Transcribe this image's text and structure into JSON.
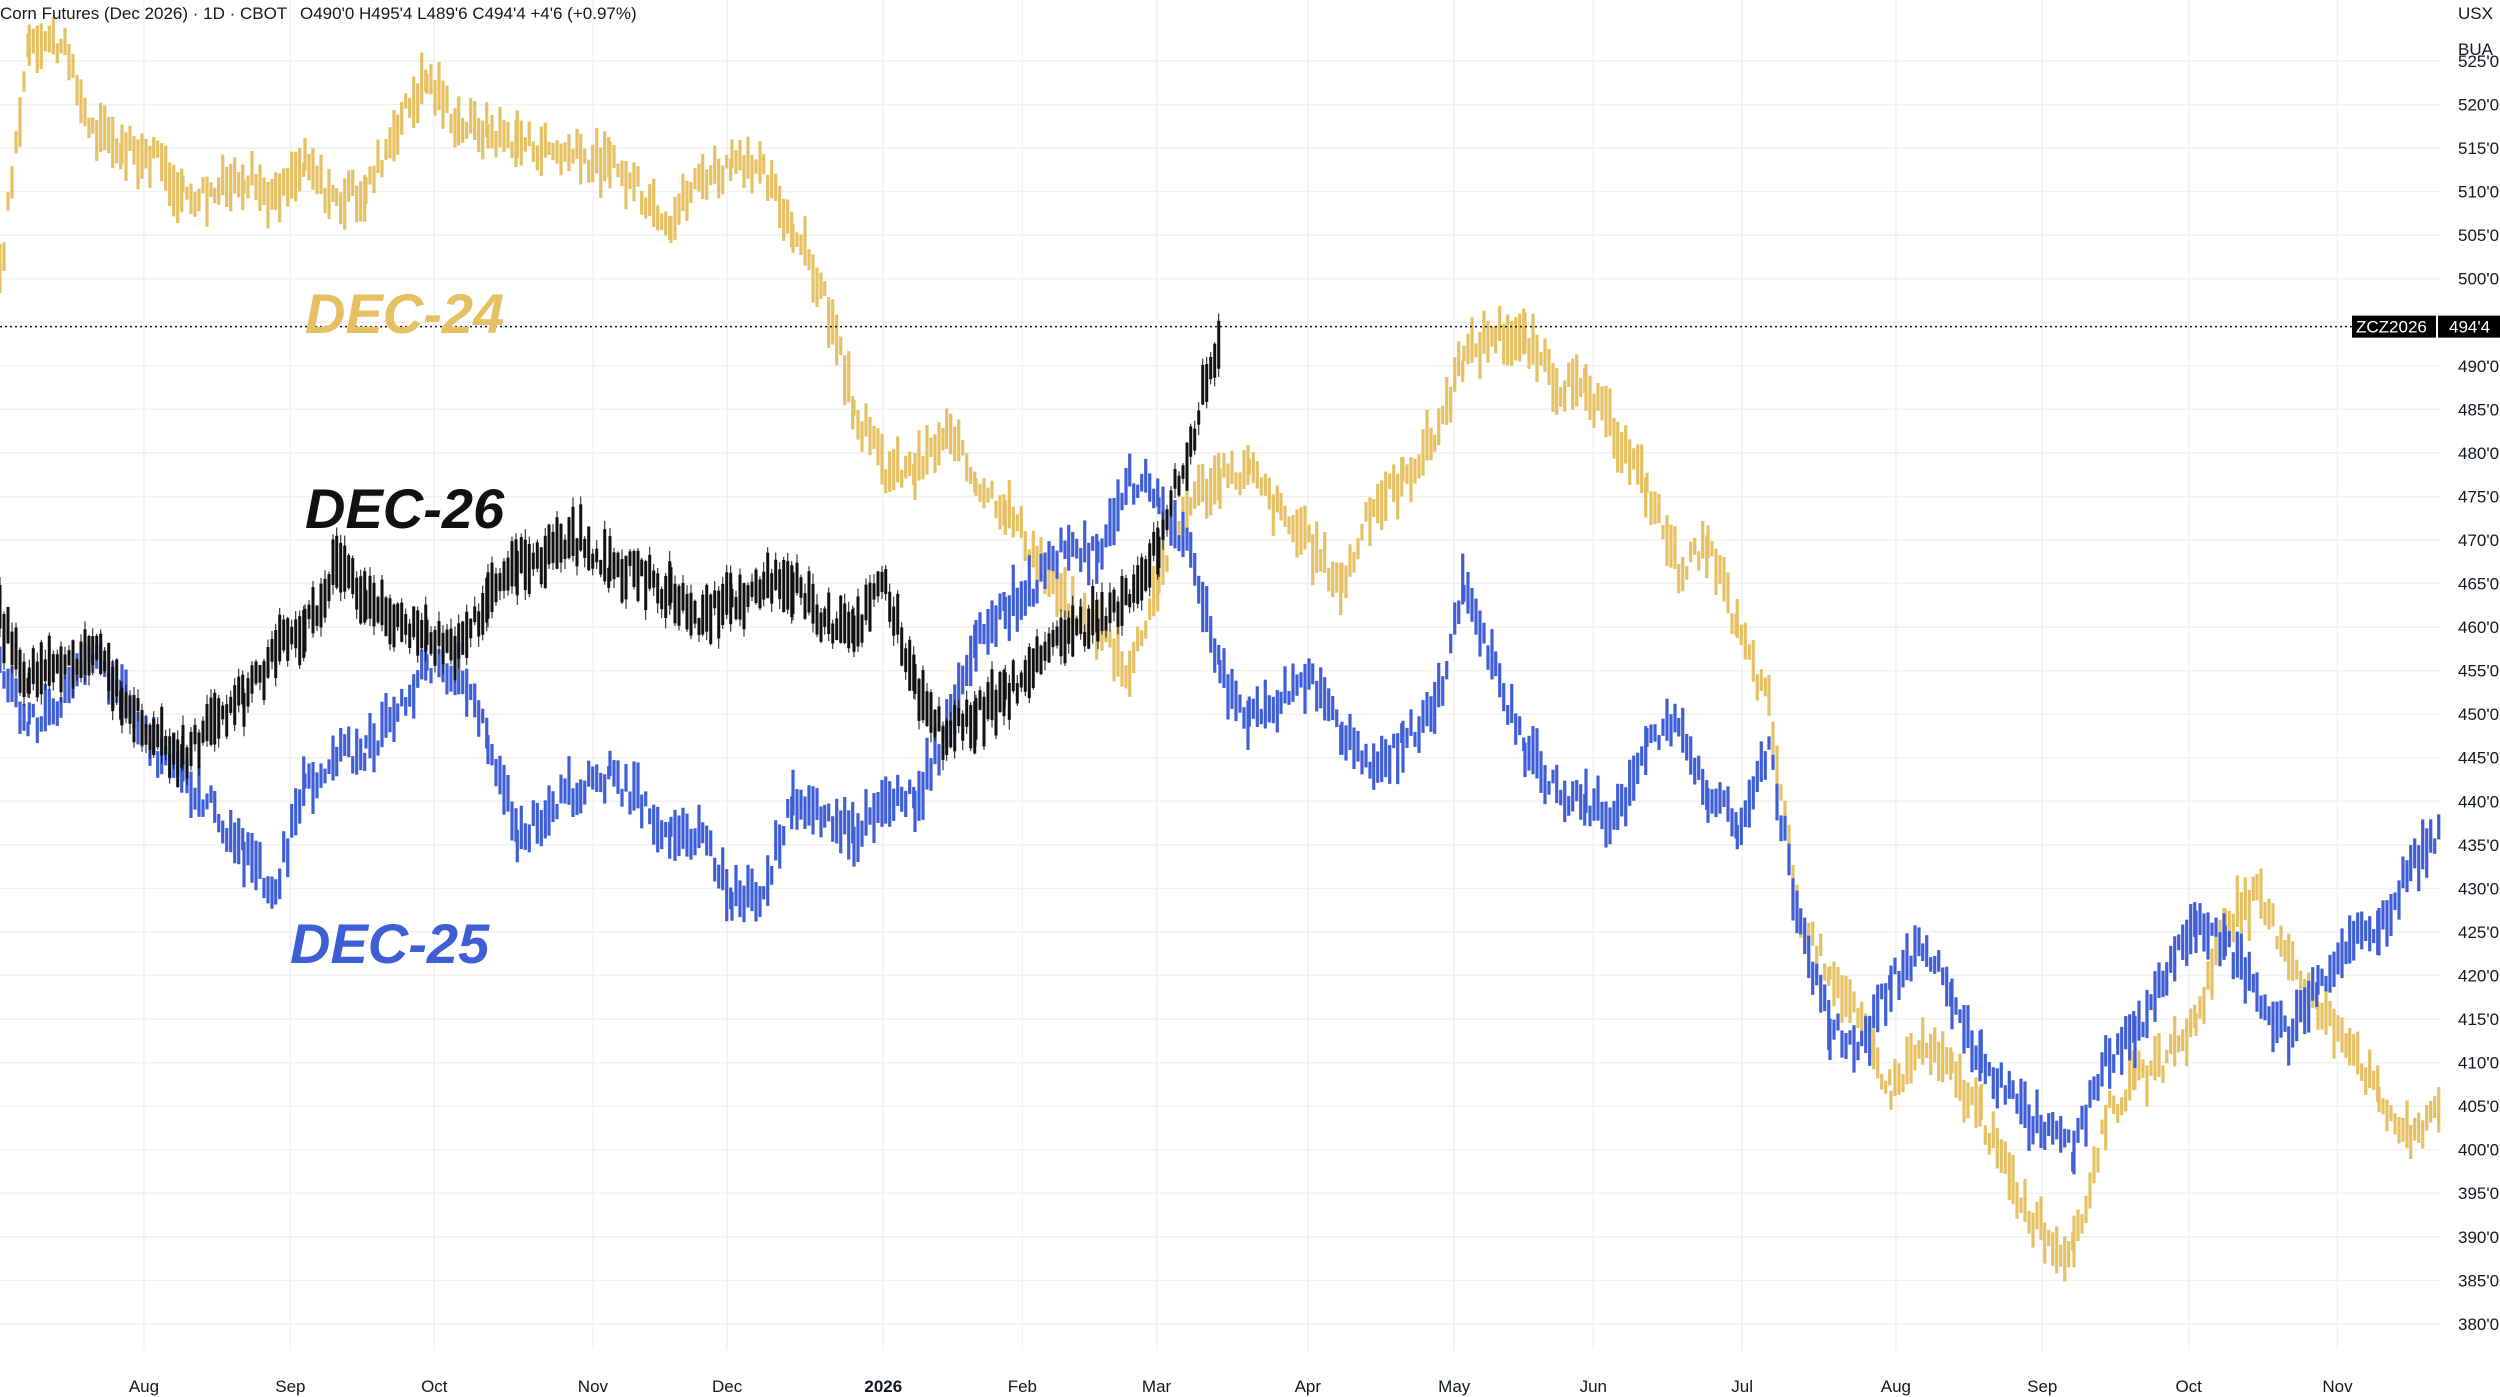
{
  "header": {
    "title": "Corn Futures (Dec 2026) · 1D · CBOT",
    "ohlc": "O490'0  H495'4  L489'6  C494'4  +4'6 (+0.97%)"
  },
  "price_axis": {
    "currency": "USX",
    "unit": "BUA"
  },
  "price_tag": {
    "symbol": "ZCZ2026",
    "value": "494'4",
    "value_num": 494.5
  },
  "colors": {
    "dec24": "#e5c163",
    "dec25": "#3f5ed6",
    "dec26": "#111111",
    "grid": "#f0f1f3",
    "tag_bg": "#000000"
  },
  "series_labels": {
    "dec24": "DEC-24",
    "dec25": "DEC-25",
    "dec26": "DEC-26"
  },
  "chart_data": {
    "type": "line",
    "ylim": [
      377,
      532
    ],
    "y_ticks": [
      380,
      385,
      390,
      395,
      400,
      405,
      410,
      415,
      420,
      425,
      430,
      435,
      440,
      445,
      450,
      455,
      460,
      465,
      470,
      475,
      480,
      485,
      490,
      495,
      500,
      505,
      510,
      515,
      520,
      525
    ],
    "y_tick_labels": [
      "380'0",
      "385'0",
      "390'0",
      "395'0",
      "400'0",
      "405'0",
      "410'0",
      "415'0",
      "420'0",
      "425'0",
      "430'0",
      "435'0",
      "440'0",
      "445'0",
      "450'0",
      "455'0",
      "460'0",
      "465'0",
      "470'0",
      "475'0",
      "480'0",
      "485'0",
      "490'0",
      "495'0",
      "500'0",
      "505'0",
      "510'0",
      "515'0",
      "520'0",
      "525'0"
    ],
    "x_ticks": [
      {
        "label": "Aug",
        "pos": 0.059,
        "bold": false
      },
      {
        "label": "Sep",
        "pos": 0.119,
        "bold": false
      },
      {
        "label": "Oct",
        "pos": 0.178,
        "bold": false
      },
      {
        "label": "Nov",
        "pos": 0.243,
        "bold": false
      },
      {
        "label": "Dec",
        "pos": 0.298,
        "bold": false
      },
      {
        "label": "2026",
        "pos": 0.362,
        "bold": true
      },
      {
        "label": "Feb",
        "pos": 0.419,
        "bold": false
      },
      {
        "label": "Mar",
        "pos": 0.474,
        "bold": false
      },
      {
        "label": "Apr",
        "pos": 0.536,
        "bold": false
      },
      {
        "label": "May",
        "pos": 0.596,
        "bold": false
      },
      {
        "label": "Jun",
        "pos": 0.653,
        "bold": false
      },
      {
        "label": "Jul",
        "pos": 0.714,
        "bold": false
      },
      {
        "label": "Aug",
        "pos": 0.777,
        "bold": false
      },
      {
        "label": "Sep",
        "pos": 0.837,
        "bold": false
      },
      {
        "label": "Oct",
        "pos": 0.897,
        "bold": false
      },
      {
        "label": "Nov",
        "pos": 0.958,
        "bold": false
      }
    ],
    "series": [
      {
        "name": "DEC-24",
        "style": "bars",
        "x": [
          0.0,
          0.012,
          0.025,
          0.038,
          0.05,
          0.063,
          0.075,
          0.088,
          0.1,
          0.113,
          0.125,
          0.138,
          0.15,
          0.163,
          0.175,
          0.188,
          0.2,
          0.212,
          0.225,
          0.238,
          0.25,
          0.263,
          0.275,
          0.288,
          0.3,
          0.313,
          0.325,
          0.338,
          0.35,
          0.363,
          0.375,
          0.388,
          0.4,
          0.412,
          0.425,
          0.438,
          0.45,
          0.463,
          0.475,
          0.488,
          0.5,
          0.512,
          0.525,
          0.538,
          0.55,
          0.563,
          0.575,
          0.588,
          0.6,
          0.613,
          0.625,
          0.638,
          0.65,
          0.663,
          0.675,
          0.688,
          0.7,
          0.712,
          0.725,
          0.738,
          0.75,
          0.763,
          0.775,
          0.788,
          0.8,
          0.812,
          0.825,
          0.838,
          0.85,
          0.863,
          0.875,
          0.888,
          0.9,
          0.912,
          0.925,
          0.938,
          0.95,
          0.963,
          0.975,
          0.988,
          1.0
        ],
        "y": [
          500,
          528,
          527,
          517,
          515,
          514,
          510,
          510,
          512,
          509,
          513,
          509,
          510,
          518,
          523,
          518,
          517,
          516,
          515,
          514,
          513,
          510,
          507,
          512,
          513,
          512,
          506,
          498,
          485,
          478,
          478,
          482,
          477,
          474,
          468,
          462,
          460,
          455,
          466,
          475,
          477,
          478,
          473,
          469,
          465,
          474,
          477,
          482,
          491,
          494,
          493,
          488,
          487,
          482,
          476,
          467,
          469,
          460,
          451,
          425,
          421,
          414,
          407,
          412,
          409,
          404,
          396,
          390,
          388,
          404,
          408,
          410,
          415,
          426,
          429,
          423,
          416,
          413,
          406,
          401,
          406
        ]
      },
      {
        "name": "DEC-25",
        "style": "bars",
        "x": [
          0.0,
          0.012,
          0.025,
          0.038,
          0.05,
          0.063,
          0.075,
          0.088,
          0.1,
          0.113,
          0.125,
          0.138,
          0.15,
          0.163,
          0.175,
          0.188,
          0.2,
          0.212,
          0.225,
          0.238,
          0.25,
          0.263,
          0.275,
          0.288,
          0.3,
          0.313,
          0.325,
          0.338,
          0.35,
          0.363,
          0.375,
          0.388,
          0.4,
          0.412,
          0.425,
          0.438,
          0.45,
          0.463,
          0.475,
          0.488,
          0.5,
          0.512,
          0.525,
          0.538,
          0.55,
          0.563,
          0.575,
          0.588,
          0.6,
          0.613,
          0.625,
          0.638,
          0.65,
          0.663,
          0.675,
          0.688,
          0.7,
          0.712,
          0.725,
          0.738,
          0.75,
          0.763,
          0.775,
          0.788,
          0.8,
          0.812,
          0.825,
          0.838,
          0.85,
          0.863,
          0.875,
          0.888,
          0.9,
          0.912,
          0.925,
          0.938,
          0.95,
          0.963,
          0.975,
          0.988,
          1.0
        ],
        "y": [
          455,
          449,
          451,
          457,
          452,
          446,
          443,
          439,
          434,
          430,
          442,
          445,
          446,
          450,
          456,
          455,
          447,
          436,
          439,
          442,
          443,
          440,
          436,
          436,
          429,
          430,
          440,
          439,
          436,
          441,
          440,
          448,
          458,
          462,
          465,
          470,
          468,
          477,
          475,
          468,
          455,
          449,
          452,
          454,
          448,
          443,
          447,
          450,
          465,
          455,
          446,
          441,
          440,
          438,
          447,
          449,
          441,
          437,
          446,
          425,
          414,
          412,
          419,
          424,
          418,
          410,
          406,
          402,
          400,
          410,
          413,
          420,
          426,
          424,
          418,
          413,
          419,
          424,
          425,
          433,
          436
        ]
      },
      {
        "name": "DEC-26",
        "style": "candles",
        "x": [
          0.0,
          0.012,
          0.025,
          0.038,
          0.05,
          0.063,
          0.075,
          0.088,
          0.1,
          0.113,
          0.125,
          0.138,
          0.15,
          0.163,
          0.175,
          0.188,
          0.2,
          0.212,
          0.225,
          0.238,
          0.25,
          0.263,
          0.275,
          0.288,
          0.3,
          0.313,
          0.325,
          0.338,
          0.35,
          0.363,
          0.375,
          0.388,
          0.4,
          0.412,
          0.425,
          0.438,
          0.45,
          0.463,
          0.475,
          0.488,
          0.5
        ],
        "y": [
          461,
          454,
          456,
          457,
          452,
          448,
          445,
          449,
          452,
          457,
          460,
          467,
          463,
          461,
          459,
          457,
          463,
          467,
          469,
          470,
          467,
          466,
          464,
          461,
          463,
          465,
          465,
          461,
          460,
          465,
          453,
          447,
          450,
          452,
          456,
          459,
          461,
          464,
          470,
          481,
          494
        ]
      }
    ]
  }
}
